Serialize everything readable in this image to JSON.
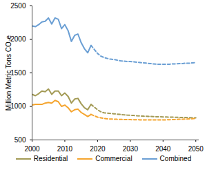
{
  "chart_data": {
    "type": "line",
    "y_label": "Million Metric Tons CO₂e",
    "x": [
      2000,
      2001,
      2002,
      2003,
      2004,
      2005,
      2006,
      2007,
      2008,
      2009,
      2010,
      2011,
      2012,
      2013,
      2014,
      2015,
      2016,
      2017,
      2018,
      2019,
      2020,
      2021,
      2022,
      2023,
      2024,
      2025,
      2026,
      2027,
      2028,
      2029,
      2030,
      2031,
      2032,
      2033,
      2034,
      2035,
      2036,
      2037,
      2038,
      2039,
      2040,
      2041,
      2042,
      2043,
      2044,
      2045,
      2046,
      2047,
      2048,
      2049,
      2050
    ],
    "xlim": [
      2000,
      2051
    ],
    "xticks": [
      2000,
      2010,
      2020,
      2030,
      2040,
      2050
    ],
    "ylim": [
      500,
      2500
    ],
    "yticks": [
      500,
      1000,
      1500,
      2000,
      2500
    ],
    "grid": false,
    "legend": "bottom",
    "series": [
      {
        "name": "Residential",
        "color": "#a39a55",
        "line_style": "solid",
        "values": [
          1180,
          1160,
          1190,
          1230,
          1220,
          1260,
          1180,
          1230,
          1230,
          1160,
          1200,
          1150,
          1050,
          1110,
          1120,
          1040,
          980,
          950,
          1030,
          null,
          null,
          null,
          null,
          null,
          null,
          null,
          null,
          null,
          null,
          null,
          null,
          null,
          null,
          null,
          null,
          null,
          null,
          null,
          null,
          null,
          null,
          null,
          null,
          null,
          null,
          null,
          null,
          null,
          null,
          null,
          null
        ]
      },
      {
        "name": "Commercial",
        "color": "#f5a52f",
        "line_style": "solid",
        "values": [
          1020,
          1030,
          1030,
          1030,
          1050,
          1060,
          1050,
          1090,
          1070,
          1000,
          1020,
          980,
          920,
          950,
          960,
          910,
          880,
          850,
          880,
          null,
          null,
          null,
          null,
          null,
          null,
          null,
          null,
          null,
          null,
          null,
          null,
          null,
          null,
          null,
          null,
          null,
          null,
          null,
          null,
          null,
          null,
          null,
          null,
          null,
          null,
          null,
          null,
          null,
          null,
          null,
          null
        ]
      },
      {
        "name": "Combined",
        "color": "#6b9fd4",
        "line_style": "solid",
        "values": [
          2200,
          2190,
          2220,
          2260,
          2270,
          2320,
          2230,
          2320,
          2300,
          2160,
          2220,
          2130,
          1970,
          2060,
          2080,
          1950,
          1860,
          1800,
          1910,
          null,
          null,
          null,
          null,
          null,
          null,
          null,
          null,
          null,
          null,
          null,
          null,
          null,
          null,
          null,
          null,
          null,
          null,
          null,
          null,
          null,
          null,
          null,
          null,
          null,
          null,
          null,
          null,
          null,
          null,
          null,
          null
        ]
      },
      {
        "name": "Residential",
        "color": "#a39a55",
        "line_style": "dashed",
        "values": [
          null,
          null,
          null,
          null,
          null,
          null,
          null,
          null,
          null,
          null,
          null,
          null,
          null,
          null,
          null,
          null,
          null,
          null,
          1030,
          990,
          950,
          920,
          905,
          900,
          895,
          890,
          885,
          880,
          875,
          870,
          868,
          865,
          860,
          858,
          855,
          852,
          850,
          848,
          846,
          845,
          843,
          842,
          840,
          840,
          838,
          836,
          835,
          834,
          832,
          830,
          830
        ]
      },
      {
        "name": "Commercial",
        "color": "#f5a52f",
        "line_style": "dashed",
        "values": [
          null,
          null,
          null,
          null,
          null,
          null,
          null,
          null,
          null,
          null,
          null,
          null,
          null,
          null,
          null,
          null,
          null,
          null,
          880,
          860,
          840,
          830,
          820,
          815,
          812,
          810,
          808,
          806,
          805,
          804,
          803,
          802,
          801,
          800,
          800,
          800,
          800,
          800,
          800,
          800,
          800,
          800,
          802,
          804,
          806,
          808,
          810,
          812,
          814,
          816,
          820
        ]
      },
      {
        "name": "Combined",
        "color": "#6b9fd4",
        "line_style": "dashed",
        "values": [
          null,
          null,
          null,
          null,
          null,
          null,
          null,
          null,
          null,
          null,
          null,
          null,
          null,
          null,
          null,
          null,
          null,
          null,
          1910,
          1850,
          1790,
          1750,
          1730,
          1715,
          1705,
          1700,
          1690,
          1680,
          1675,
          1670,
          1670,
          1665,
          1660,
          1655,
          1650,
          1645,
          1640,
          1635,
          1630,
          1630,
          1630,
          1630,
          1630,
          1635,
          1635,
          1640,
          1640,
          1645,
          1645,
          1650,
          1655
        ]
      }
    ]
  }
}
